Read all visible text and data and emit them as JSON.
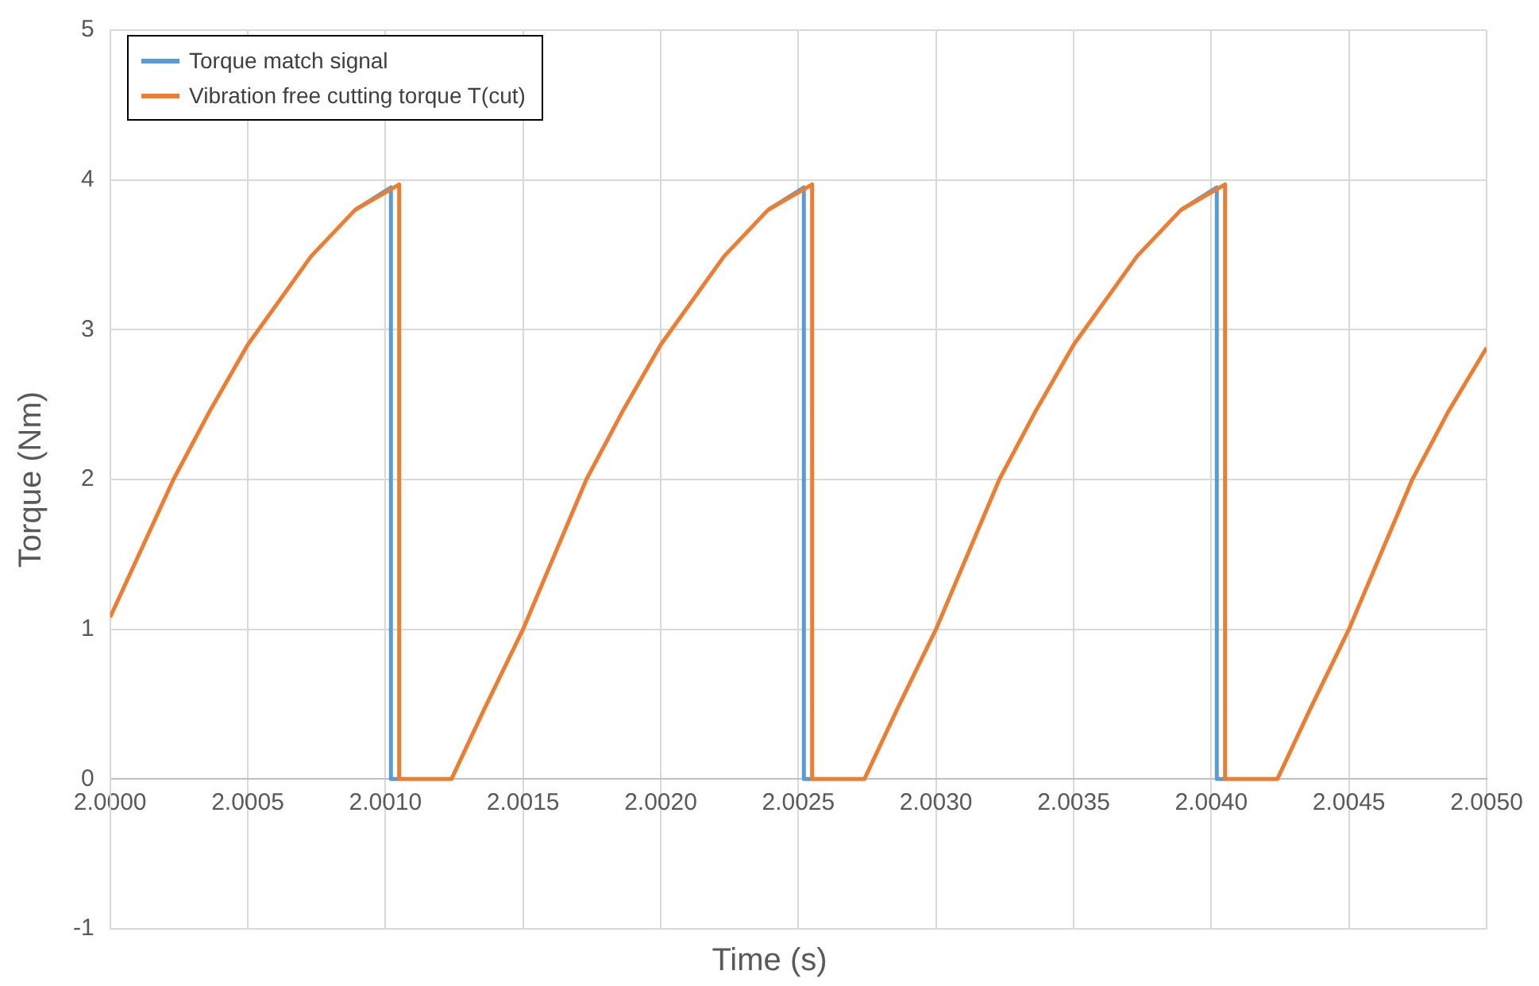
{
  "chart_data": {
    "type": "line",
    "xlabel": "Time (s)",
    "ylabel": "Torque (Nm)",
    "xlim": [
      2.0,
      2.005
    ],
    "xticks": [
      {
        "value": 2.0,
        "label": "2.0000"
      },
      {
        "value": 2.0005,
        "label": "2.0005"
      },
      {
        "value": 2.001,
        "label": "2.0010"
      },
      {
        "value": 2.0015,
        "label": "2.0015"
      },
      {
        "value": 2.002,
        "label": "2.0020"
      },
      {
        "value": 2.0025,
        "label": "2.0025"
      },
      {
        "value": 2.003,
        "label": "2.0030"
      },
      {
        "value": 2.0035,
        "label": "2.0035"
      },
      {
        "value": 2.004,
        "label": "2.0040"
      },
      {
        "value": 2.0045,
        "label": "2.0045"
      },
      {
        "value": 2.005,
        "label": "2.0050"
      }
    ],
    "ylim": [
      -1,
      5
    ],
    "yticks": [
      -1,
      0,
      1,
      2,
      3,
      4,
      5
    ],
    "grid": true,
    "legend": "top left",
    "marker": "none",
    "line_style": "solid",
    "series": [
      {
        "name": "Torque match signal",
        "color": "#5b9bd5",
        "x": [
          2.00089,
          2.00102,
          2.00102,
          2.00105,
          2.0017,
          2.00239,
          2.00252,
          2.00252,
          2.00255,
          2.0032,
          2.00389,
          2.00402,
          2.00402,
          2.00405
        ],
        "values": [
          3.8,
          3.95,
          0,
          0,
          null,
          3.8,
          3.95,
          0,
          0,
          null,
          3.8,
          3.95,
          0,
          0
        ]
      },
      {
        "name": "Vibration free cutting torque T(cut)",
        "color": "#ed7d31",
        "x": [
          2.0,
          2.00023,
          2.00036,
          2.0005,
          2.00073,
          2.00089,
          2.00105,
          2.00105,
          2.00124,
          2.00136,
          2.0015,
          2.00173,
          2.00186,
          2.002,
          2.00223,
          2.00239,
          2.00255,
          2.00255,
          2.00274,
          2.00286,
          2.003,
          2.00323,
          2.00336,
          2.0035,
          2.00373,
          2.00389,
          2.00405,
          2.00405,
          2.00424,
          2.00436,
          2.0045,
          2.00473,
          2.00486,
          2.005
        ],
        "values": [
          1.08,
          2.0,
          2.45,
          2.9,
          3.49,
          3.8,
          3.97,
          0,
          0,
          0.47,
          1.0,
          2.0,
          2.45,
          2.9,
          3.49,
          3.8,
          3.97,
          0,
          0,
          0.47,
          1.0,
          2.0,
          2.45,
          2.9,
          3.49,
          3.8,
          3.97,
          0,
          0,
          0.47,
          1.0,
          2.0,
          2.45,
          2.88
        ]
      }
    ]
  }
}
